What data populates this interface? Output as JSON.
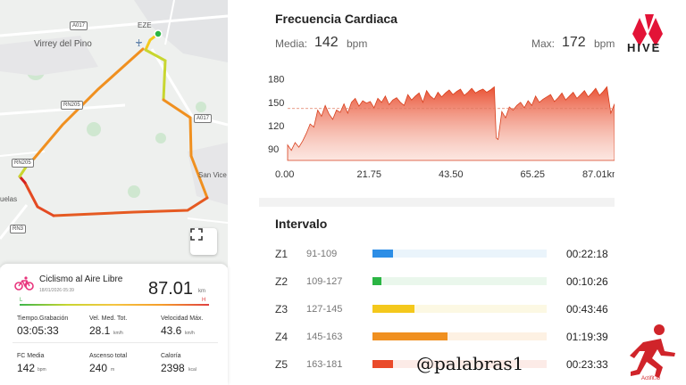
{
  "map": {
    "place_labels": [
      "Virrey del Pino",
      "EZE",
      "San Vice",
      "uelas"
    ],
    "road_labels": [
      "A017",
      "RN205",
      "A017",
      "RN205",
      "RN3"
    ],
    "expand_icon": "expand-icon"
  },
  "activity": {
    "title": "Ciclismo al Aire Libre",
    "date": "18/01/2026 05:39",
    "distance": "87.01",
    "distance_unit": "km",
    "icon": "bicycle-icon",
    "l_label": "L",
    "h_label": "H",
    "stats": [
      {
        "label": "Tiempo.Grabación",
        "value": "03:05:33",
        "unit": ""
      },
      {
        "label": "Vel. Med. Tot.",
        "value": "28.1",
        "unit": "km/h"
      },
      {
        "label": "Velocidad Máx.",
        "value": "43.6",
        "unit": "km/h"
      },
      {
        "label": "FC Media",
        "value": "142",
        "unit": "bpm"
      },
      {
        "label": "Ascenso total",
        "value": "240",
        "unit": "m"
      },
      {
        "label": "Caloría",
        "value": "2398",
        "unit": "kcal"
      }
    ]
  },
  "heart_rate": {
    "title": "Frecuencia Cardiaca",
    "avg_label": "Media:",
    "avg_value": "142",
    "avg_unit": "bpm",
    "max_label": "Max:",
    "max_value": "172",
    "max_unit": "bpm"
  },
  "chart_data": {
    "type": "area",
    "title": "Frecuencia Cardiaca",
    "x_ticks": [
      "0.00",
      "21.75",
      "43.50",
      "65.25",
      "87.01km"
    ],
    "y_ticks": [
      180,
      150,
      120,
      90
    ],
    "xlim": [
      0,
      87.01
    ],
    "ylim": [
      75,
      190
    ],
    "average_line": 142,
    "series": [
      {
        "x": [
          0,
          1,
          2,
          3,
          4,
          5,
          6,
          7,
          8,
          9,
          10,
          11,
          12,
          13,
          14,
          15,
          16,
          17,
          18,
          19,
          20,
          21,
          22,
          23,
          24,
          25,
          26,
          27,
          28,
          29,
          30,
          31,
          32,
          33,
          34,
          35,
          36,
          37,
          38,
          39,
          40,
          41,
          42,
          43,
          44,
          45,
          46,
          47,
          48,
          49,
          50,
          51,
          52,
          53,
          54,
          55,
          55.5,
          56,
          57,
          58,
          59,
          60,
          61,
          62,
          63,
          64,
          65,
          66,
          67,
          68,
          69,
          70,
          71,
          72,
          73,
          74,
          75,
          76,
          77,
          78,
          79,
          80,
          81,
          82,
          83,
          84,
          85,
          86,
          87.01
        ],
        "y": [
          95,
          88,
          98,
          92,
          100,
          110,
          122,
          118,
          140,
          132,
          146,
          135,
          128,
          140,
          137,
          148,
          136,
          150,
          155,
          145,
          152,
          149,
          151,
          143,
          155,
          150,
          158,
          147,
          153,
          156,
          150,
          146,
          160,
          153,
          158,
          162,
          150,
          165,
          158,
          154,
          163,
          157,
          162,
          166,
          160,
          164,
          167,
          159,
          163,
          168,
          162,
          165,
          167,
          163,
          166,
          170,
          104,
          102,
          138,
          130,
          144,
          140,
          146,
          150,
          143,
          152,
          146,
          158,
          150,
          154,
          157,
          160,
          151,
          156,
          162,
          153,
          158,
          163,
          155,
          160,
          165,
          157,
          162,
          168,
          159,
          164,
          170,
          136,
          148
        ]
      }
    ]
  },
  "intervals": {
    "title": "Intervalo",
    "zones": [
      {
        "name": "Z1",
        "range": "91-109",
        "time": "00:22:18",
        "fraction": 0.12,
        "color": "#2d8ee6",
        "track": "#eaf4fb"
      },
      {
        "name": "Z2",
        "range": "109-127",
        "time": "00:10:26",
        "fraction": 0.05,
        "color": "#2bb544",
        "track": "#eaf7ec"
      },
      {
        "name": "Z3",
        "range": "127-145",
        "time": "00:43:46",
        "fraction": 0.24,
        "color": "#f4c81c",
        "track": "#fcf8e3"
      },
      {
        "name": "Z4",
        "range": "145-163",
        "time": "01:19:39",
        "fraction": 0.43,
        "color": "#f09020",
        "track": "#fdf1e3"
      },
      {
        "name": "Z5",
        "range": "163-181",
        "time": "00:23:33",
        "fraction": 0.12,
        "color": "#ea4a2a",
        "track": "#fcebe7"
      }
    ]
  },
  "branding": {
    "hive": "HIVE",
    "actifit": "Actifit.io",
    "watermark": "@palabras1"
  }
}
